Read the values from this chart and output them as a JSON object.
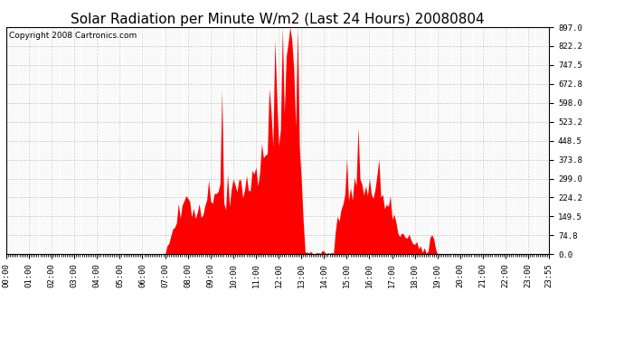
{
  "title": "Solar Radiation per Minute W/m2 (Last 24 Hours) 20080804",
  "copyright": "Copyright 2008 Cartronics.com",
  "y_ticks": [
    0.0,
    74.8,
    149.5,
    224.2,
    299.0,
    373.8,
    448.5,
    523.2,
    598.0,
    672.8,
    747.5,
    822.2,
    897.0
  ],
  "y_max": 897.0,
  "y_min": 0.0,
  "fill_color": "#FF0000",
  "line_color": "#FF0000",
  "background_color": "#FFFFFF",
  "plot_bg_color": "#FFFFFF",
  "grid_color": "#BBBBBB",
  "title_fontsize": 11,
  "copyright_fontsize": 6.5,
  "tick_fontsize": 6.5,
  "baseline_color": "#FF0000"
}
